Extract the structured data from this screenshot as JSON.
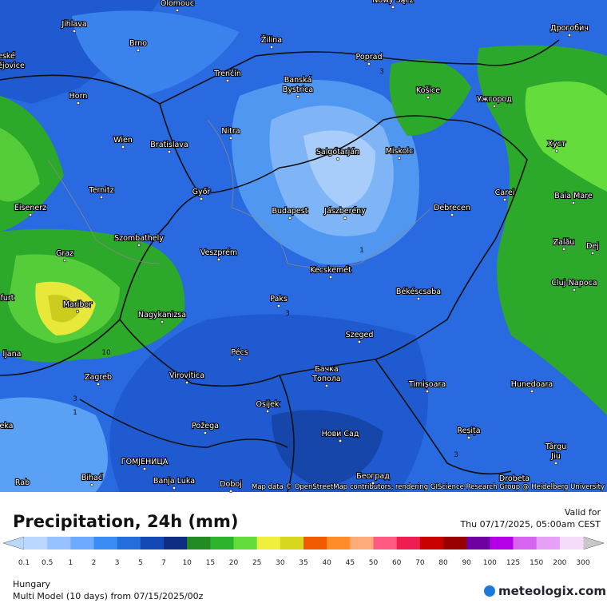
{
  "map": {
    "cities": [
      "Olomouc",
      "Nowy Sącz",
      "Jihlava",
      "Brno",
      "Žilina",
      "Дрогобич",
      "Poprad",
      "Trenčín",
      "Banská",
      "Bystrica",
      "Košice",
      "Ужгород",
      "Horn",
      "Nitra",
      "Wien",
      "Bratislava",
      "Salgótarján",
      "Miskolc",
      "Хуст",
      "Ternitz",
      "Győr",
      "Carei",
      "Baia Mare",
      "Eisenerz",
      "Budapest",
      "Jászberény",
      "Debrecen",
      "Szombathely",
      "Zalău",
      "Graz",
      "Veszprém",
      "Dej",
      "Kecskemét",
      "Cluj-Napoca",
      "Maribor",
      "Paks",
      "Békéscsaba",
      "Nagykanizsa",
      "Pécs",
      "Szeged",
      "Zagreb",
      "Virovitica",
      "Бачка",
      "Топола",
      "Timișoara",
      "Hunedoara",
      "Osijek",
      "Požega",
      "Нови Сад",
      "Reșița",
      "Târgu",
      "Jiu",
      "ГОМЈЕНИЦА",
      "Bihać",
      "Banja Luka",
      "Doboj",
      "Београд",
      "Drobeta",
      "eské",
      "ějovice",
      "furt",
      "ljana",
      "eka",
      "Rab"
    ],
    "contour_labels": [
      "10",
      "3",
      "3",
      "1",
      "1",
      "3",
      "3"
    ],
    "attribution": "Map data © OpenStreetMap contributors, rendering GIScience Research Group @ Heidelberg University"
  },
  "footer": {
    "title": "Precipitation, 24h (mm)",
    "valid_label": "Valid for",
    "valid_time": "Thu 07/17/2025, 05:00am CEST",
    "region": "Hungary",
    "model": "Multi Model (10 days) from  07/15/2025/00z",
    "brand": "meteologix.com"
  },
  "legend": {
    "labels": [
      0.1,
      0.5,
      1,
      2,
      3,
      5,
      7,
      10,
      15,
      20,
      25,
      30,
      35,
      40,
      45,
      50,
      60,
      70,
      80,
      90,
      100,
      125,
      150,
      200,
      300
    ],
    "colors": [
      "#b9d7ff",
      "#96c3ff",
      "#6eaaff",
      "#3c8cf5",
      "#236edc",
      "#1448b4",
      "#0f2d82",
      "#228c22",
      "#2db42d",
      "#64dc3c",
      "#f0f03c",
      "#d7d71e",
      "#f05a00",
      "#ff8c28",
      "#ffaa78",
      "#ff5a82",
      "#f01e50",
      "#c80000",
      "#960000",
      "#6e00a0",
      "#b400e6",
      "#d764f0",
      "#e6a0f5",
      "#f5dcfa",
      "#c8c8c8"
    ]
  }
}
